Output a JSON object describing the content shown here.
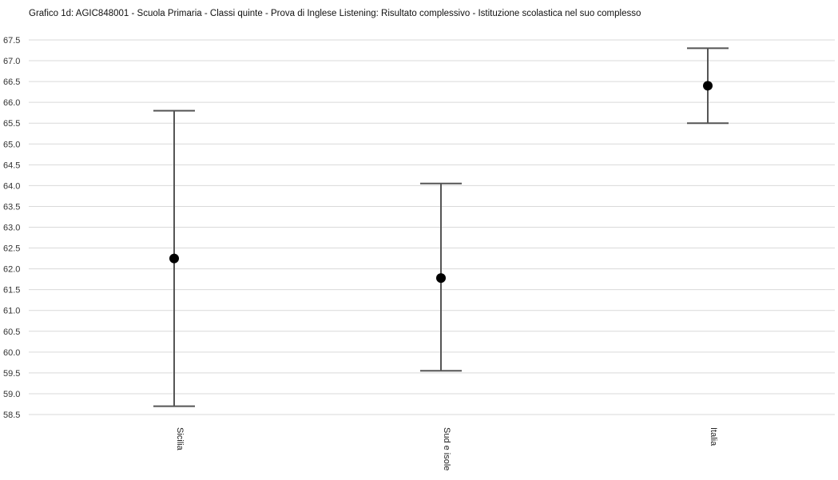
{
  "chart_data": {
    "type": "scatter",
    "title": "Grafico 1d: AGIC848001 - Scuola Primaria - Classi quinte - Prova di Inglese Listening: Risultato complessivo - Istituzione scolastica nel suo complesso",
    "xlabel": "",
    "ylabel": "",
    "categories": [
      "Sicilia",
      "Sud e isole",
      "Italia"
    ],
    "series": [
      {
        "values": [
          62.25,
          61.78,
          66.4
        ],
        "lower": [
          58.7,
          59.55,
          65.5
        ],
        "upper": [
          65.8,
          64.05,
          67.3
        ]
      }
    ],
    "ylim": [
      58.5,
      67.5
    ],
    "y_ticks": [
      "58.5",
      "59.0",
      "59.5",
      "60.0",
      "60.5",
      "61.0",
      "61.5",
      "62.0",
      "62.5",
      "63.0",
      "63.5",
      "64.0",
      "64.5",
      "65.0",
      "65.5",
      "66.0",
      "66.5",
      "67.0",
      "67.5"
    ],
    "grid": true,
    "colors": {
      "marker": "#000000",
      "error_bar": "#555555",
      "grid": "#d9d9d9"
    }
  }
}
